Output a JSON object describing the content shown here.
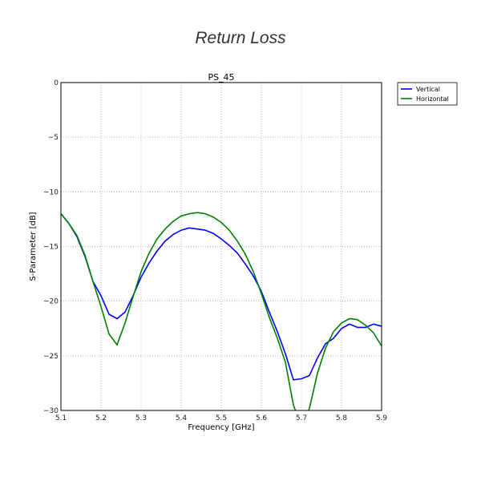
{
  "page_title": "Return Loss",
  "chart_data": {
    "type": "line",
    "title": "PS_45",
    "xlabel": "Frequency [GHz]",
    "ylabel": "S-Parameter [dB]",
    "xlim": [
      5.1,
      5.9
    ],
    "ylim": [
      -30,
      0
    ],
    "xticks": [
      "5.1",
      "5.2",
      "5.3",
      "5.4",
      "5.5",
      "5.6",
      "5.7",
      "5.8",
      "5.9"
    ],
    "yticks": [
      "0",
      "−5",
      "−10",
      "−15",
      "−20",
      "−25",
      "−30"
    ],
    "grid": true,
    "legend_placement": "outside-top-right",
    "x": [
      5.1,
      5.12,
      5.14,
      5.16,
      5.18,
      5.2,
      5.22,
      5.24,
      5.26,
      5.28,
      5.3,
      5.32,
      5.34,
      5.36,
      5.38,
      5.4,
      5.42,
      5.44,
      5.46,
      5.48,
      5.5,
      5.52,
      5.54,
      5.56,
      5.58,
      5.6,
      5.62,
      5.64,
      5.66,
      5.68,
      5.7,
      5.72,
      5.74,
      5.76,
      5.78,
      5.8,
      5.82,
      5.84,
      5.86,
      5.88,
      5.9
    ],
    "series": [
      {
        "name": "Vertical",
        "color": "#0000ff",
        "values": [
          -12,
          -12.9,
          -14.1,
          -15.9,
          -18.2,
          -19.5,
          -21.2,
          -21.6,
          -21.0,
          -19.5,
          -17.8,
          -16.5,
          -15.4,
          -14.5,
          -13.9,
          -13.5,
          -13.3,
          -13.4,
          -13.5,
          -13.8,
          -14.3,
          -14.9,
          -15.6,
          -16.6,
          -17.7,
          -19.1,
          -21.0,
          -22.8,
          -24.8,
          -27.2,
          -27.1,
          -26.8,
          -25.2,
          -23.9,
          -23.4,
          -22.5,
          -22.1,
          -22.4,
          -22.4,
          -22.1,
          -22.3
        ]
      },
      {
        "name": "Horizontal",
        "color": "#008000",
        "values": [
          -12,
          -12.9,
          -14.0,
          -15.8,
          -18.2,
          -20.5,
          -23.0,
          -24.0,
          -22.0,
          -19.6,
          -17.3,
          -15.6,
          -14.3,
          -13.4,
          -12.7,
          -12.2,
          -12.0,
          -11.9,
          -12.0,
          -12.3,
          -12.8,
          -13.5,
          -14.5,
          -15.7,
          -17.3,
          -19.3,
          -21.5,
          -23.4,
          -25.6,
          -29.5,
          -31.5,
          -29.8,
          -26.6,
          -24.3,
          -22.8,
          -22.0,
          -21.6,
          -21.7,
          -22.2,
          -22.9,
          -24.1
        ]
      }
    ]
  }
}
